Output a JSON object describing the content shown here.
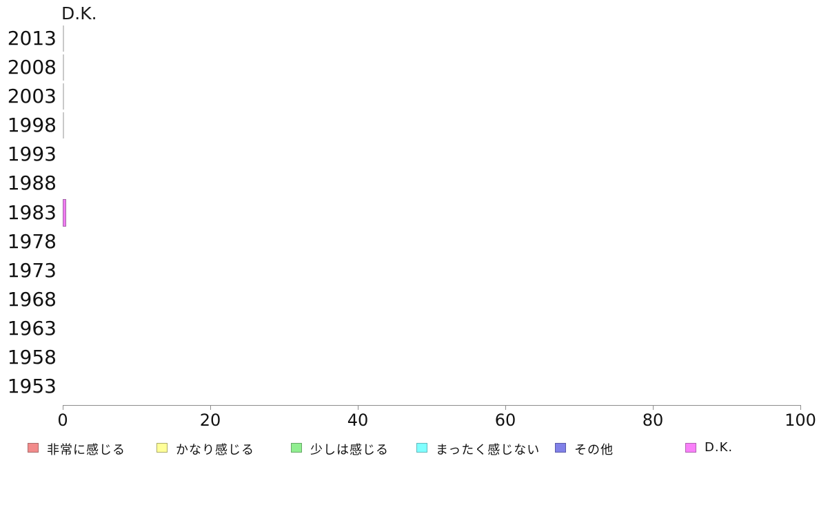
{
  "chart_data": {
    "type": "bar",
    "orientation": "horizontal",
    "title": "D.K.",
    "categories": [
      "2013",
      "2008",
      "2003",
      "1998",
      "1993",
      "1988",
      "1983",
      "1978",
      "1973",
      "1968",
      "1963",
      "1958",
      "1953"
    ],
    "values": [
      0,
      0,
      0,
      0,
      null,
      null,
      0.5,
      null,
      null,
      null,
      null,
      null,
      null
    ],
    "series_shown": "D.K.",
    "xlabel": "",
    "ylabel": "",
    "xlim": [
      0,
      100
    ],
    "x_ticks": [
      "0",
      "20",
      "40",
      "60",
      "80",
      "100"
    ],
    "grid": false,
    "legend_position": "bottom",
    "bar_fill": "#F07CF1",
    "bar_border": "#A368A8",
    "zero_stub_color": "#C9C9C9",
    "axis_color": "#8c8c8c",
    "legend": [
      {
        "label": "非常に感じる",
        "fill": "#F28B8B",
        "border": "#A96A6A"
      },
      {
        "label": "かなり感じる",
        "fill": "#FFFF99",
        "border": "#ABAB69"
      },
      {
        "label": "少しは感じる",
        "fill": "#90EE90",
        "border": "#66A766"
      },
      {
        "label": "まったく感じない",
        "fill": "#80FFFF",
        "border": "#62B8BC"
      },
      {
        "label": "その他",
        "fill": "#8181E8",
        "border": "#5A5AA8"
      },
      {
        "label": "D.K.",
        "fill": "#F980F9",
        "border": "#AF62B0"
      }
    ]
  }
}
